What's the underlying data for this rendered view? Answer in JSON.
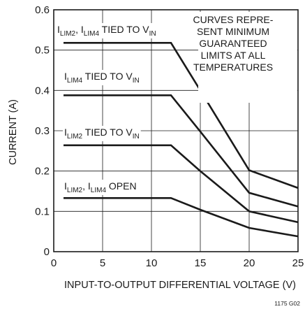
{
  "chart_data": {
    "type": "line",
    "title": "",
    "xlabel": "INPUT-TO-OUTPUT DIFFERENTIAL VOLTAGE (V)",
    "ylabel": "CURRENT (A)",
    "xlim": [
      0,
      25
    ],
    "ylim": [
      0,
      0.6
    ],
    "xticks": [
      "0",
      "5",
      "10",
      "15",
      "20",
      "25"
    ],
    "yticks": [
      "0",
      "0.1",
      "0.2",
      "0.3",
      "0.4",
      "0.5",
      "0.6"
    ],
    "grid": true,
    "note_lines": [
      "CURVES REPRE-",
      "SENT MINIMUM",
      "GUARANTEED",
      "LIMITS AT ALL",
      "TEMPERATURES"
    ],
    "figure_id": "1175 G02",
    "series": [
      {
        "label_parts": [
          {
            "t": "I"
          },
          {
            "t": "LIM2",
            "sub": true
          },
          {
            "t": ", I"
          },
          {
            "t": "LIM4",
            "sub": true
          },
          {
            "t": " TIED TO V"
          },
          {
            "t": "IN",
            "sub": true
          }
        ],
        "points": [
          [
            1,
            0.518
          ],
          [
            12,
            0.518
          ],
          [
            15,
            0.4
          ],
          [
            20,
            0.202
          ],
          [
            25,
            0.158
          ]
        ]
      },
      {
        "label_parts": [
          {
            "t": "I"
          },
          {
            "t": "LIM4",
            "sub": true
          },
          {
            "t": " TIED TO V"
          },
          {
            "t": "IN",
            "sub": true
          }
        ],
        "points": [
          [
            1,
            0.388
          ],
          [
            12,
            0.388
          ],
          [
            15,
            0.298
          ],
          [
            20,
            0.146
          ],
          [
            25,
            0.112
          ]
        ]
      },
      {
        "label_parts": [
          {
            "t": "I"
          },
          {
            "t": "LIM2",
            "sub": true
          },
          {
            "t": " TIED TO V"
          },
          {
            "t": "IN",
            "sub": true
          }
        ],
        "points": [
          [
            1,
            0.264
          ],
          [
            12,
            0.264
          ],
          [
            15,
            0.2
          ],
          [
            20,
            0.1
          ],
          [
            25,
            0.073
          ]
        ]
      },
      {
        "label_parts": [
          {
            "t": "I"
          },
          {
            "t": "LIM2",
            "sub": true
          },
          {
            "t": ", I"
          },
          {
            "t": "LIM4",
            "sub": true
          },
          {
            "t": " OPEN"
          }
        ],
        "points": [
          [
            1,
            0.133
          ],
          [
            12,
            0.133
          ],
          [
            15,
            0.104
          ],
          [
            20,
            0.059
          ],
          [
            25,
            0.038
          ]
        ]
      }
    ]
  }
}
